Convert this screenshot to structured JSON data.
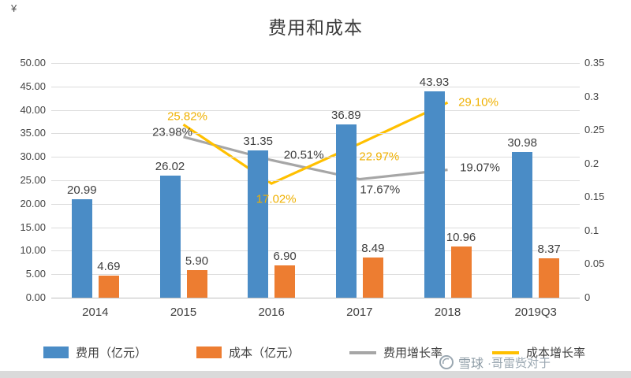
{
  "decorations": {
    "corner_glyph": "¥"
  },
  "watermark": {
    "text": "雪球",
    "suffix": "·哥雷赀对于"
  },
  "legend": [
    {
      "label": "费用（亿元）",
      "swatch": "bar",
      "color": "#4a8cc6"
    },
    {
      "label": "成本（亿元）",
      "swatch": "bar",
      "color": "#ed7d31"
    },
    {
      "label": "费用增长率",
      "swatch": "line",
      "color": "#a6a6a6"
    },
    {
      "label": "成本增长率",
      "swatch": "line",
      "color": "#ffc000"
    }
  ],
  "chart_data": {
    "type": "combo",
    "title": "费用和成本",
    "categories": [
      "2014",
      "2015",
      "2016",
      "2017",
      "2018",
      "2019Q3"
    ],
    "bar_series": [
      {
        "name": "费用（亿元）",
        "color": "#4a8cc6",
        "values": [
          20.99,
          26.02,
          31.35,
          36.89,
          43.93,
          30.98
        ],
        "labels": [
          "20.99",
          "26.02",
          "31.35",
          "36.89",
          "43.93",
          "30.98"
        ]
      },
      {
        "name": "成本（亿元）",
        "color": "#ed7d31",
        "values": [
          4.69,
          5.9,
          6.9,
          8.49,
          10.96,
          8.37
        ],
        "labels": [
          "4.69",
          "5.90",
          "6.90",
          "8.49",
          "10.96",
          "8.37"
        ]
      }
    ],
    "line_series": [
      {
        "name": "费用增长率",
        "color": "#a6a6a6",
        "label_color": "#3f3f3f",
        "x": [
          1,
          2,
          3,
          4
        ],
        "values": [
          0.2398,
          0.2051,
          0.1767,
          0.1907
        ],
        "labels": [
          "23.98%",
          "20.51%",
          "17.67%",
          "19.07%"
        ]
      },
      {
        "name": "成本增长率",
        "color": "#ffc000",
        "label_color": "#efb000",
        "x": [
          1,
          2,
          3,
          4
        ],
        "values": [
          0.2582,
          0.1702,
          0.2297,
          0.291
        ],
        "labels": [
          "25.82%",
          "17.02%",
          "22.97%",
          "29.10%"
        ]
      }
    ],
    "left_axis": {
      "min": 0,
      "max": 50,
      "step": 5,
      "labels": [
        "0.00",
        "5.00",
        "10.00",
        "15.00",
        "20.00",
        "25.00",
        "30.00",
        "35.00",
        "40.00",
        "45.00",
        "50.00"
      ]
    },
    "right_axis": {
      "min": 0,
      "max": 0.35,
      "step": 0.05,
      "labels": [
        "0",
        "0.05",
        "0.1",
        "0.15",
        "0.2",
        "0.25",
        "0.3",
        "0.35"
      ]
    },
    "grid": true,
    "legend_position": "bottom"
  }
}
